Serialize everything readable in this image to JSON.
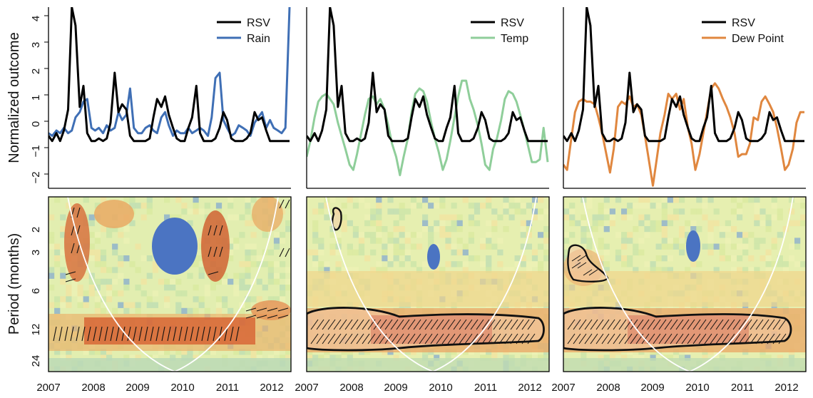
{
  "chart_data": [
    {
      "type": "line",
      "panel": "top-left",
      "ylabel": "Normalized outcome",
      "ylim": [
        -2.5,
        4.4
      ],
      "yticks": [
        "−2",
        "−1",
        "0",
        "1",
        "2",
        "3",
        "4"
      ],
      "ytick_values": [
        -2,
        -1,
        0,
        1,
        2,
        3,
        4
      ],
      "xlim": [
        2007.0,
        2012.2
      ],
      "legend_position": "top-right",
      "series": [
        {
          "name": "RSV",
          "color": "#000000",
          "x": [
            2007.0,
            2007.08,
            2007.17,
            2007.25,
            2007.33,
            2007.42,
            2007.5,
            2007.58,
            2007.67,
            2007.75,
            2007.83,
            2007.92,
            2008.0,
            2008.08,
            2008.17,
            2008.25,
            2008.33,
            2008.42,
            2008.5,
            2008.58,
            2008.67,
            2008.75,
            2008.83,
            2008.92,
            2009.0,
            2009.08,
            2009.17,
            2009.25,
            2009.33,
            2009.42,
            2009.5,
            2009.58,
            2009.67,
            2009.75,
            2009.83,
            2009.92,
            2010.0,
            2010.08,
            2010.17,
            2010.25,
            2010.33,
            2010.42,
            2010.5,
            2010.58,
            2010.67,
            2010.75,
            2010.83,
            2010.92,
            2011.0,
            2011.08,
            2011.17,
            2011.25,
            2011.33,
            2011.42,
            2011.5,
            2011.58,
            2011.67,
            2011.75,
            2011.83,
            2011.92,
            2012.0,
            2012.08,
            2012.17
          ],
          "values": [
            -0.5,
            -0.7,
            -0.4,
            -0.7,
            -0.3,
            0.5,
            4.4,
            3.7,
            0.6,
            1.4,
            -0.4,
            -0.7,
            -0.7,
            -0.6,
            -0.7,
            -0.6,
            0.0,
            1.9,
            0.4,
            0.7,
            0.5,
            -0.5,
            -0.7,
            -0.7,
            -0.7,
            -0.7,
            -0.6,
            0.2,
            0.9,
            0.6,
            1.0,
            0.3,
            -0.2,
            -0.6,
            -0.7,
            -0.7,
            -0.2,
            0.2,
            1.4,
            -0.4,
            -0.7,
            -0.7,
            -0.7,
            -0.6,
            -0.2,
            0.4,
            0.1,
            -0.6,
            -0.7,
            -0.7,
            -0.7,
            -0.6,
            -0.4,
            0.4,
            0.1,
            0.2,
            -0.3,
            -0.7,
            -0.7,
            -0.7,
            -0.7,
            -0.7,
            -0.7
          ]
        },
        {
          "name": "Rain",
          "color": "#3f6fb5",
          "x": [
            2007.0,
            2007.08,
            2007.17,
            2007.25,
            2007.33,
            2007.42,
            2007.5,
            2007.58,
            2007.67,
            2007.75,
            2007.83,
            2007.92,
            2008.0,
            2008.08,
            2008.17,
            2008.25,
            2008.33,
            2008.42,
            2008.5,
            2008.58,
            2008.67,
            2008.75,
            2008.83,
            2008.92,
            2009.0,
            2009.08,
            2009.17,
            2009.25,
            2009.33,
            2009.42,
            2009.5,
            2009.58,
            2009.67,
            2009.75,
            2009.83,
            2009.92,
            2010.0,
            2010.08,
            2010.17,
            2010.25,
            2010.33,
            2010.42,
            2010.5,
            2010.58,
            2010.67,
            2010.75,
            2010.83,
            2010.92,
            2011.0,
            2011.08,
            2011.17,
            2011.25,
            2011.33,
            2011.42,
            2011.5,
            2011.58,
            2011.67,
            2011.75,
            2011.83,
            2011.92,
            2012.0,
            2012.08,
            2012.17
          ],
          "values": [
            -0.4,
            -0.5,
            -0.3,
            -0.4,
            -0.2,
            -0.4,
            -0.3,
            0.2,
            0.4,
            0.8,
            0.9,
            -0.2,
            -0.3,
            -0.2,
            -0.4,
            -0.1,
            -0.3,
            -0.2,
            0.4,
            0.1,
            0.3,
            1.3,
            -0.2,
            -0.4,
            -0.4,
            -0.2,
            -0.1,
            -0.3,
            -0.4,
            0.2,
            0.4,
            -0.1,
            -0.5,
            -0.3,
            -0.4,
            -0.4,
            -0.2,
            -0.4,
            -0.3,
            -0.2,
            -0.3,
            -0.5,
            0.2,
            1.7,
            1.9,
            0.1,
            -0.2,
            -0.5,
            -0.4,
            -0.1,
            -0.2,
            -0.3,
            -0.5,
            0.0,
            0.2,
            0.4,
            -0.2,
            0.1,
            -0.2,
            -0.3,
            -0.4,
            -0.2,
            4.4
          ]
        }
      ]
    },
    {
      "type": "line",
      "panel": "top-middle",
      "ylim": [
        -2.5,
        4.4
      ],
      "xlim": [
        2007.0,
        2012.2
      ],
      "legend_position": "top-right",
      "series": [
        {
          "name": "RSV",
          "color": "#000000",
          "x": [
            2007.0,
            2007.08,
            2007.17,
            2007.25,
            2007.33,
            2007.42,
            2007.5,
            2007.58,
            2007.67,
            2007.75,
            2007.83,
            2007.92,
            2008.0,
            2008.08,
            2008.17,
            2008.25,
            2008.33,
            2008.42,
            2008.5,
            2008.58,
            2008.67,
            2008.75,
            2008.83,
            2008.92,
            2009.0,
            2009.08,
            2009.17,
            2009.25,
            2009.33,
            2009.42,
            2009.5,
            2009.58,
            2009.67,
            2009.75,
            2009.83,
            2009.92,
            2010.0,
            2010.08,
            2010.17,
            2010.25,
            2010.33,
            2010.42,
            2010.5,
            2010.58,
            2010.67,
            2010.75,
            2010.83,
            2010.92,
            2011.0,
            2011.08,
            2011.17,
            2011.25,
            2011.33,
            2011.42,
            2011.5,
            2011.58,
            2011.67,
            2011.75,
            2011.83,
            2011.92,
            2012.0,
            2012.08,
            2012.17
          ],
          "values": [
            -0.5,
            -0.7,
            -0.4,
            -0.7,
            -0.3,
            0.5,
            4.4,
            3.7,
            0.6,
            1.4,
            -0.4,
            -0.7,
            -0.7,
            -0.6,
            -0.7,
            -0.6,
            0.0,
            1.9,
            0.4,
            0.7,
            0.5,
            -0.5,
            -0.7,
            -0.7,
            -0.7,
            -0.7,
            -0.6,
            0.2,
            0.9,
            0.6,
            1.0,
            0.3,
            -0.2,
            -0.6,
            -0.7,
            -0.7,
            -0.2,
            0.2,
            1.4,
            -0.4,
            -0.7,
            -0.7,
            -0.7,
            -0.6,
            -0.2,
            0.4,
            0.1,
            -0.6,
            -0.7,
            -0.7,
            -0.7,
            -0.6,
            -0.4,
            0.4,
            0.1,
            0.2,
            -0.3,
            -0.7,
            -0.7,
            -0.7,
            -0.7,
            -0.7,
            -0.7
          ]
        },
        {
          "name": "Temp",
          "color": "#8fce9a",
          "x": [
            2007.0,
            2007.08,
            2007.17,
            2007.25,
            2007.33,
            2007.42,
            2007.5,
            2007.58,
            2007.67,
            2007.75,
            2007.83,
            2007.92,
            2008.0,
            2008.08,
            2008.17,
            2008.25,
            2008.33,
            2008.42,
            2008.5,
            2008.58,
            2008.67,
            2008.75,
            2008.83,
            2008.92,
            2009.0,
            2009.08,
            2009.17,
            2009.25,
            2009.33,
            2009.42,
            2009.5,
            2009.58,
            2009.67,
            2009.75,
            2009.83,
            2009.92,
            2010.0,
            2010.08,
            2010.17,
            2010.25,
            2010.33,
            2010.42,
            2010.5,
            2010.58,
            2010.67,
            2010.75,
            2010.83,
            2010.92,
            2011.0,
            2011.08,
            2011.17,
            2011.25,
            2011.33,
            2011.42,
            2011.5,
            2011.58,
            2011.67,
            2011.75,
            2011.83,
            2011.92,
            2012.0,
            2012.08,
            2012.17
          ],
          "values": [
            -1.3,
            -0.7,
            0.2,
            0.8,
            1.0,
            1.1,
            0.9,
            0.7,
            0.0,
            -0.5,
            -1.0,
            -1.6,
            -1.8,
            -1.2,
            -0.4,
            0.3,
            0.9,
            1.0,
            0.7,
            0.9,
            0.5,
            -0.1,
            -0.8,
            -1.3,
            -2.0,
            -1.3,
            -0.6,
            0.4,
            1.1,
            1.3,
            1.2,
            0.8,
            0.0,
            -0.6,
            -1.1,
            -1.8,
            -1.4,
            -0.7,
            0.2,
            1.0,
            1.6,
            1.6,
            0.9,
            0.5,
            -0.1,
            -0.8,
            -1.6,
            -1.8,
            -1.0,
            -0.6,
            0.1,
            0.9,
            1.2,
            1.1,
            0.8,
            0.3,
            -0.3,
            -0.9,
            -1.5,
            -1.5,
            -1.4,
            -0.2,
            -1.5
          ]
        }
      ]
    },
    {
      "type": "line",
      "panel": "top-right",
      "ylim": [
        -2.5,
        4.4
      ],
      "xlim": [
        2007.0,
        2012.2
      ],
      "legend_position": "top-right",
      "series": [
        {
          "name": "RSV",
          "color": "#000000",
          "x": [
            2007.0,
            2007.08,
            2007.17,
            2007.25,
            2007.33,
            2007.42,
            2007.5,
            2007.58,
            2007.67,
            2007.75,
            2007.83,
            2007.92,
            2008.0,
            2008.08,
            2008.17,
            2008.25,
            2008.33,
            2008.42,
            2008.5,
            2008.58,
            2008.67,
            2008.75,
            2008.83,
            2008.92,
            2009.0,
            2009.08,
            2009.17,
            2009.25,
            2009.33,
            2009.42,
            2009.5,
            2009.58,
            2009.67,
            2009.75,
            2009.83,
            2009.92,
            2010.0,
            2010.08,
            2010.17,
            2010.25,
            2010.33,
            2010.42,
            2010.5,
            2010.58,
            2010.67,
            2010.75,
            2010.83,
            2010.92,
            2011.0,
            2011.08,
            2011.17,
            2011.25,
            2011.33,
            2011.42,
            2011.5,
            2011.58,
            2011.67,
            2011.75,
            2011.83,
            2011.92,
            2012.0,
            2012.08,
            2012.17
          ],
          "values": [
            -0.5,
            -0.7,
            -0.4,
            -0.7,
            -0.3,
            0.5,
            4.4,
            3.7,
            0.6,
            1.4,
            -0.4,
            -0.7,
            -0.7,
            -0.6,
            -0.7,
            -0.6,
            0.0,
            1.9,
            0.4,
            0.7,
            0.5,
            -0.5,
            -0.7,
            -0.7,
            -0.7,
            -0.7,
            -0.6,
            0.2,
            0.9,
            0.6,
            1.0,
            0.3,
            -0.2,
            -0.6,
            -0.7,
            -0.7,
            -0.2,
            0.2,
            1.4,
            -0.4,
            -0.7,
            -0.7,
            -0.7,
            -0.6,
            -0.2,
            0.4,
            0.1,
            -0.6,
            -0.7,
            -0.7,
            -0.7,
            -0.6,
            -0.4,
            0.4,
            0.1,
            0.2,
            -0.3,
            -0.7,
            -0.7,
            -0.7,
            -0.7,
            -0.7,
            -0.7
          ]
        },
        {
          "name": "Dew Point",
          "color": "#e0873f",
          "x": [
            2007.0,
            2007.08,
            2007.17,
            2007.25,
            2007.33,
            2007.42,
            2007.5,
            2007.58,
            2007.67,
            2007.75,
            2007.83,
            2007.92,
            2008.0,
            2008.08,
            2008.17,
            2008.25,
            2008.33,
            2008.42,
            2008.5,
            2008.58,
            2008.67,
            2008.75,
            2008.83,
            2008.92,
            2009.0,
            2009.08,
            2009.17,
            2009.25,
            2009.33,
            2009.42,
            2009.5,
            2009.58,
            2009.67,
            2009.75,
            2009.83,
            2009.92,
            2010.0,
            2010.08,
            2010.17,
            2010.25,
            2010.33,
            2010.42,
            2010.5,
            2010.58,
            2010.67,
            2010.75,
            2010.83,
            2010.92,
            2011.0,
            2011.08,
            2011.17,
            2011.25,
            2011.33,
            2011.42,
            2011.5,
            2011.58,
            2011.67,
            2011.75,
            2011.83,
            2011.92,
            2012.0,
            2012.08,
            2012.17
          ],
          "values": [
            -1.6,
            -1.8,
            -0.6,
            0.4,
            0.8,
            0.9,
            0.8,
            0.8,
            0.7,
            0.2,
            -0.4,
            -1.2,
            -1.9,
            -1.0,
            0.6,
            0.8,
            0.7,
            1.0,
            0.6,
            0.7,
            0.3,
            -0.5,
            -1.4,
            -2.4,
            -1.4,
            -0.4,
            0.3,
            1.1,
            0.9,
            1.1,
            0.5,
            0.9,
            -0.2,
            -0.8,
            -1.8,
            -1.2,
            -0.4,
            0.4,
            1.3,
            1.5,
            1.3,
            0.9,
            0.6,
            0.2,
            -0.4,
            -1.3,
            -1.2,
            -1.2,
            -0.8,
            0.2,
            0.1,
            0.8,
            1.0,
            0.7,
            0.4,
            -0.2,
            -1.0,
            -1.8,
            -1.6,
            -1.0,
            0.0,
            0.4,
            0.4
          ]
        }
      ]
    },
    {
      "type": "heatmap",
      "panel": "bottom-left",
      "ylabel": "Period (months)",
      "ylim": [
        1.5,
        36
      ],
      "yscale": "log",
      "yticks": [
        "2",
        "3",
        "6",
        "12",
        "24"
      ],
      "ytick_values": [
        2,
        3,
        6,
        12,
        24
      ],
      "xlim": [
        2007.0,
        2012.2
      ],
      "xticks": [
        "2007",
        "2008",
        "2009",
        "2010",
        "2011",
        "2012"
      ],
      "xtick_values": [
        2007,
        2008,
        2009,
        2010,
        2011,
        2012
      ],
      "cone_of_influence": "white curve",
      "significant_regions": []
    },
    {
      "type": "heatmap",
      "panel": "bottom-middle",
      "ylim": [
        1.5,
        36
      ],
      "yscale": "log",
      "xlim": [
        2007.0,
        2012.2
      ],
      "xticks": [
        "2007",
        "2008",
        "2009",
        "2010",
        "2011",
        "2012"
      ],
      "xtick_values": [
        2007,
        2008,
        2009,
        2010,
        2011,
        2012
      ],
      "cone_of_influence": "white curve",
      "significant_regions": [
        "period 10–16 months, 2007.0–2012.0",
        "period ≈2 months, around 2007.6"
      ]
    },
    {
      "type": "heatmap",
      "panel": "bottom-right",
      "ylim": [
        1.5,
        36
      ],
      "yscale": "log",
      "xlim": [
        2007.0,
        2012.2
      ],
      "xticks": [
        "2007",
        "2008",
        "2009",
        "2010",
        "2011",
        "2012"
      ],
      "xtick_values": [
        2007,
        2008,
        2009,
        2010,
        2011,
        2012
      ],
      "cone_of_influence": "white curve",
      "significant_regions": [
        "period 10–16 months, 2007.0–2012.0",
        "period 3–6 months, 2007.1–2007.9"
      ]
    }
  ]
}
